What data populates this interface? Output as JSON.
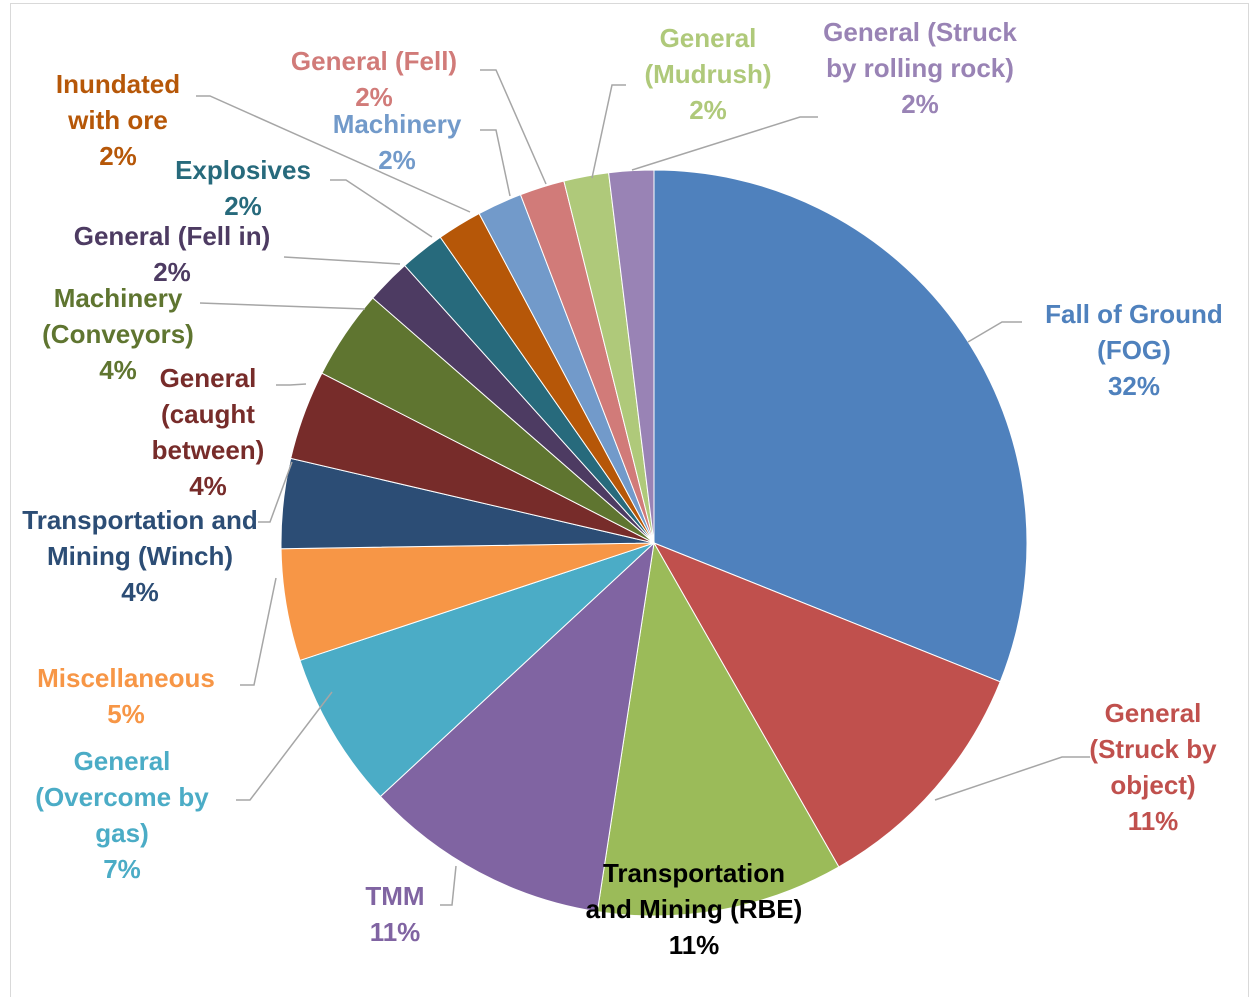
{
  "chart_data": {
    "type": "pie",
    "categories": [
      "Fall of Ground (FOG)",
      "General (Struck by object)",
      "Transportation and Mining (RBE)",
      "TMM",
      "General (Overcome by gas)",
      "Miscellaneous",
      "Transportation and Mining (Winch)",
      "General (caught between)",
      "Machinery (Conveyors)",
      "General (Fell in)",
      "Explosives",
      "Inundated with ore",
      "Machinery",
      "General (Fell)",
      "General (Mudrush)",
      "General (Struck by rolling rock)"
    ],
    "values": [
      32,
      11,
      11,
      11,
      7,
      5,
      4,
      4,
      4,
      2,
      2,
      2,
      2,
      2,
      2,
      2
    ],
    "value_labels": [
      "32%",
      "11%",
      "11%",
      "11%",
      "7%",
      "5%",
      "4%",
      "4%",
      "4%",
      "2%",
      "2%",
      "2%",
      "2%",
      "2%",
      "2%",
      "2%"
    ],
    "colors": [
      "#4f81bd",
      "#c0504d",
      "#9bbb59",
      "#8064a2",
      "#4bacc6",
      "#f79646",
      "#2c4d75",
      "#772c2a",
      "#5f7530",
      "#4d3b62",
      "#276a7c",
      "#b65708",
      "#729aca",
      "#d17b79",
      "#afc97a",
      "#9983b5"
    ],
    "label_colors": [
      "#4f81bd",
      "#c0504d",
      "#000000",
      "#8064a2",
      "#4bacc6",
      "#f79646",
      "#2c4d75",
      "#772c2a",
      "#5f7530",
      "#4d3b62",
      "#276a7c",
      "#b65708",
      "#729aca",
      "#d17b79",
      "#afc97a",
      "#9983b5"
    ]
  }
}
